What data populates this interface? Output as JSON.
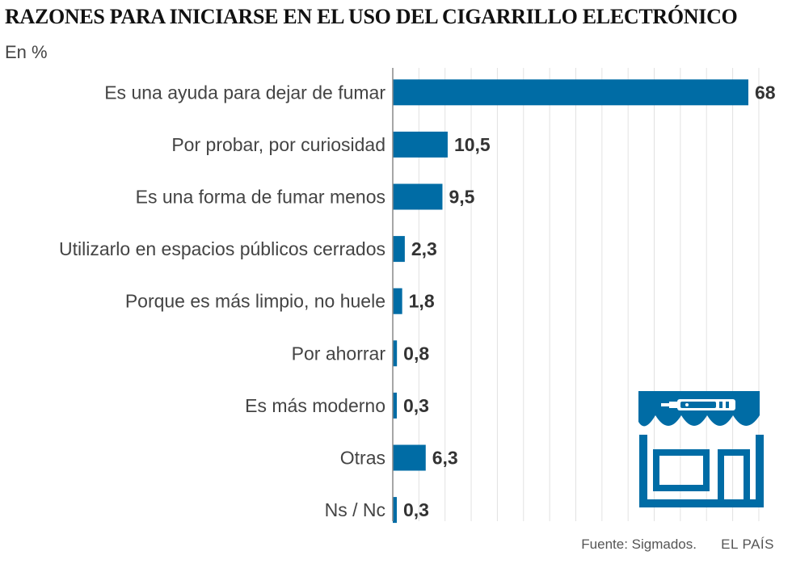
{
  "header": {
    "title": "RAZONES PARA INICIARSE EN EL USO DEL CIGARRILLO ELECTRÓNICO",
    "subtitle": "En %"
  },
  "footer": {
    "source": "Fuente: Sigmados.",
    "brand": "EL PAÍS"
  },
  "colors": {
    "bar": "#006ca5",
    "grid": "#e2e2e2",
    "axis": "#888888"
  },
  "icon": "e-cigarette-shop-icon",
  "chart_data": {
    "type": "bar",
    "orientation": "horizontal",
    "title": "RAZONES PARA INICIARSE EN EL USO DEL CIGARRILLO ELECTRÓNICO",
    "unit": "En %",
    "xlim": [
      0,
      70
    ],
    "grid": true,
    "categories": [
      "Es una ayuda para dejar de fumar",
      "Por probar, por curiosidad",
      "Es una forma de fumar menos",
      "Utilizarlo en espacios públicos cerrados",
      "Porque es más limpio, no huele",
      "Por ahorrar",
      "Es más moderno",
      "Otras",
      "Ns / Nc"
    ],
    "values": [
      68,
      10.5,
      9.5,
      2.3,
      1.8,
      0.8,
      0.3,
      6.3,
      0.3
    ],
    "value_labels": [
      "68",
      "10,5",
      "9,5",
      "2,3",
      "1,8",
      "0,8",
      "0,3",
      "6,3",
      "0,3"
    ]
  }
}
